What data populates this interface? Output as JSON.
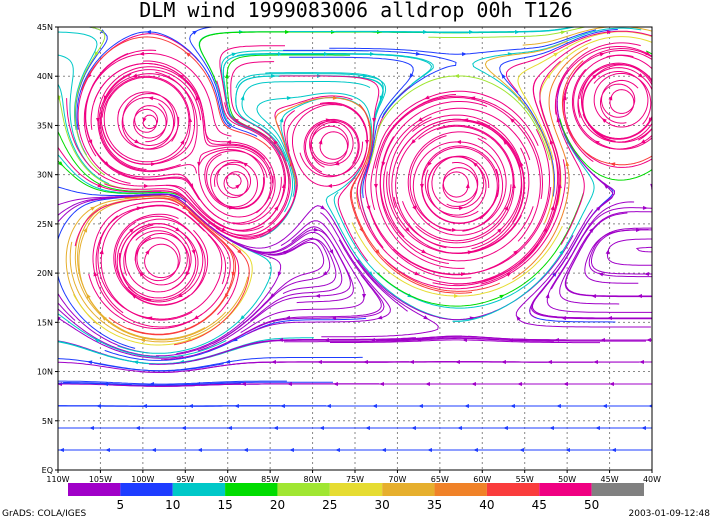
{
  "title": "DLM wind 1999083006 alldrop 00h T126",
  "x_tick_labels": [
    "110W",
    "105W",
    "100W",
    "95W",
    "90W",
    "85W",
    "80W",
    "75W",
    "70W",
    "65W",
    "60W",
    "55W",
    "50W",
    "45W",
    "40W"
  ],
  "y_tick_labels": [
    "EQ",
    "5N",
    "10N",
    "15N",
    "20N",
    "25N",
    "30N",
    "35N",
    "40N",
    "45N"
  ],
  "colorbar": {
    "labels": [
      "5",
      "10",
      "15",
      "20",
      "25",
      "30",
      "35",
      "40",
      "45",
      "50"
    ],
    "colors": [
      "#a000c8",
      "#1e3cff",
      "#00c8c8",
      "#00dc00",
      "#a0e632",
      "#e6dc32",
      "#e6af2d",
      "#f08228",
      "#fa3c3c",
      "#f00082",
      "#808080"
    ]
  },
  "footer": {
    "left": "GrADS: COLA/IGES",
    "right": "2003-01-09-12:48"
  }
}
